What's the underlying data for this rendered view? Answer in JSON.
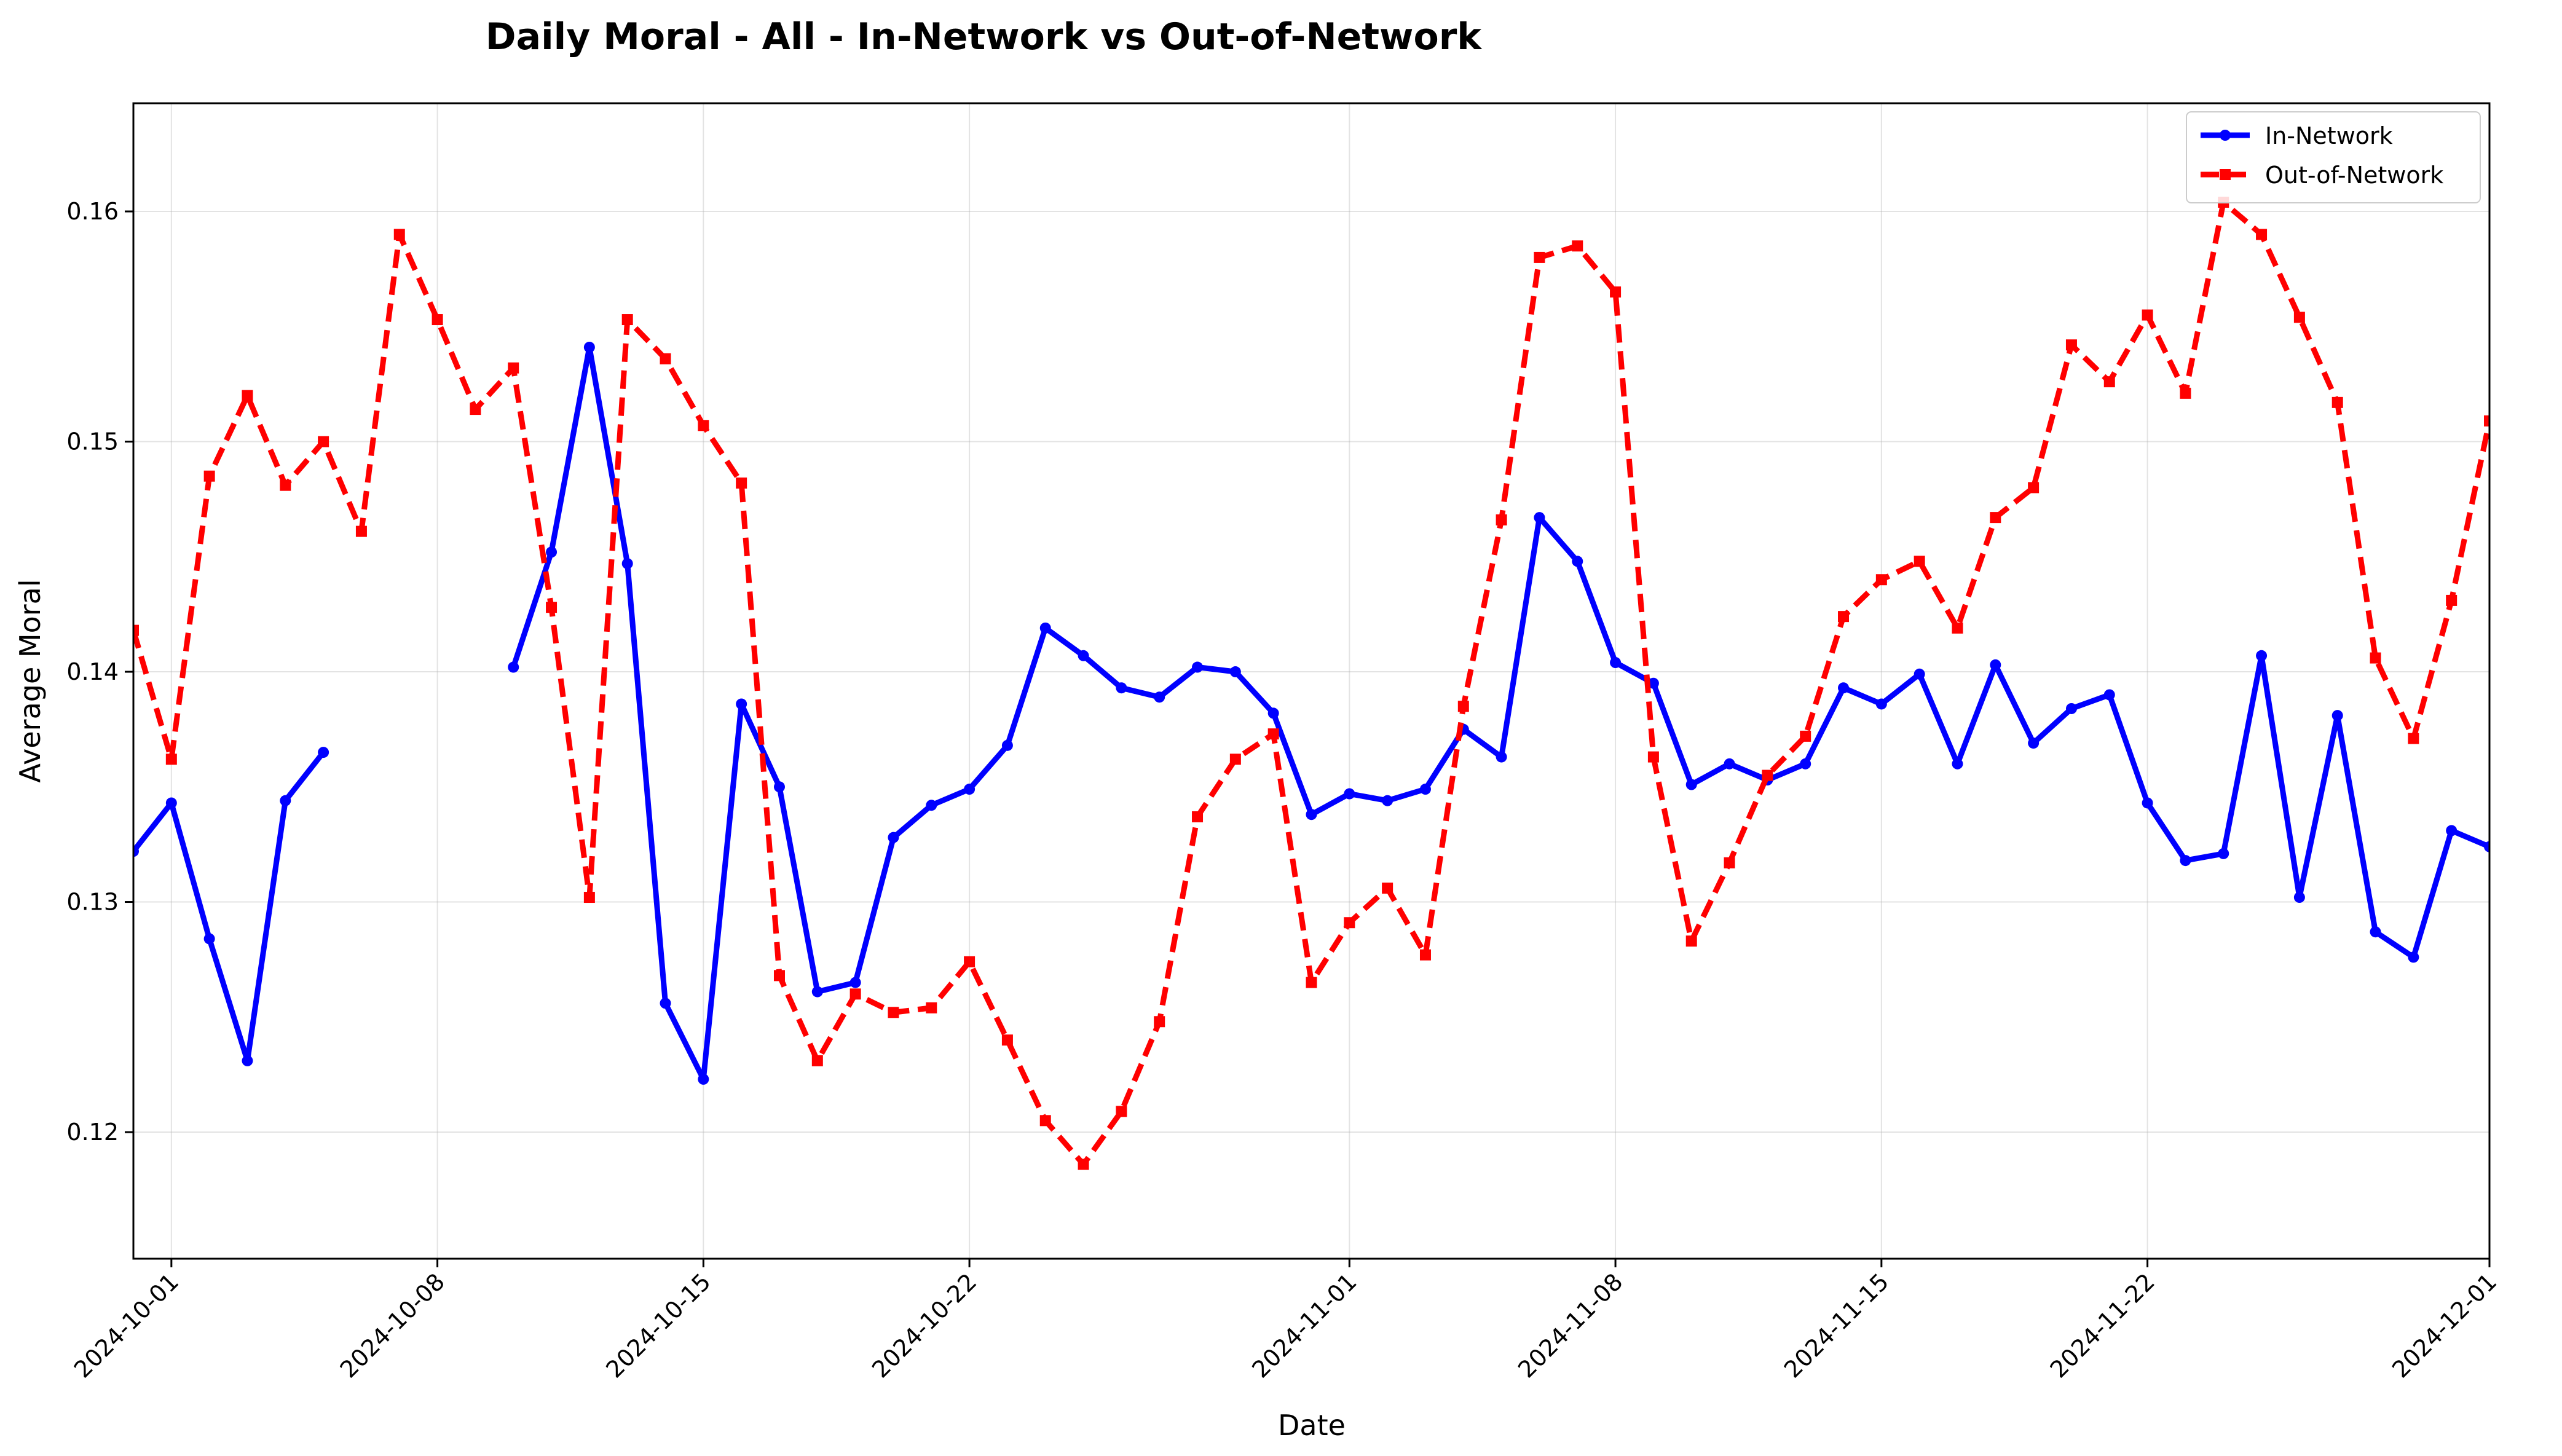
{
  "chart_data": {
    "type": "line",
    "title": "Daily Moral - All - In-Network vs Out-of-Network",
    "xlabel": "Date",
    "ylabel": "Average Moral",
    "x_start": "2024-09-30",
    "x_end": "2024-12-01",
    "xlim": [
      "2024-09-30",
      "2024-12-01"
    ],
    "ylim": [
      0.1145,
      0.1647
    ],
    "yticks": [
      0.12,
      0.13,
      0.14,
      0.15,
      0.16
    ],
    "ytick_labels": [
      "0.12",
      "0.13",
      "0.14",
      "0.15",
      "0.16"
    ],
    "xticks": [
      "2024-10-01",
      "2024-10-08",
      "2024-10-15",
      "2024-10-22",
      "2024-11-01",
      "2024-11-08",
      "2024-11-15",
      "2024-11-22",
      "2024-12-01"
    ],
    "grid": true,
    "legend_position": "top-right",
    "series": [
      {
        "name": "In-Network",
        "color": "#0000ff",
        "style": "solid",
        "marker": "circle",
        "values": [
          0.1322,
          0.1343,
          0.1284,
          0.1231,
          0.1344,
          0.1365,
          null,
          null,
          null,
          null,
          0.1402,
          0.1452,
          0.1541,
          0.1447,
          0.1256,
          0.1223,
          0.1386,
          0.135,
          0.1261,
          0.1265,
          0.1328,
          0.1342,
          0.1349,
          0.1368,
          0.1419,
          0.1407,
          0.1393,
          0.1389,
          0.1402,
          0.14,
          0.1382,
          0.1338,
          0.1347,
          0.1344,
          0.1349,
          0.1375,
          0.1363,
          0.1467,
          0.1448,
          0.1404,
          0.1395,
          0.1351,
          0.136,
          0.1353,
          0.136,
          0.1393,
          0.1386,
          0.1399,
          0.136,
          0.1403,
          0.1369,
          0.1384,
          0.139,
          0.1343,
          0.1318,
          0.1321,
          0.1407,
          0.1302,
          0.1381,
          0.1287,
          0.1276,
          0.1331,
          0.1324
        ]
      },
      {
        "name": "Out-of-Network",
        "color": "#ff0000",
        "style": "dashed",
        "marker": "square",
        "values": [
          0.1418,
          0.1362,
          0.1485,
          0.152,
          0.1481,
          0.15,
          0.1461,
          0.159,
          0.1553,
          0.1514,
          0.1532,
          0.1428,
          0.1302,
          0.1553,
          0.1536,
          0.1507,
          0.1482,
          0.1268,
          0.1231,
          0.126,
          0.1252,
          0.1254,
          0.1274,
          0.124,
          0.1205,
          0.1186,
          0.1209,
          0.1248,
          0.1337,
          0.1362,
          0.1373,
          0.1265,
          0.1291,
          0.1306,
          0.1277,
          0.1385,
          0.1466,
          0.158,
          0.1585,
          0.1565,
          0.1363,
          0.1283,
          0.1317,
          0.1355,
          0.1372,
          0.1424,
          0.144,
          0.1448,
          0.1419,
          0.1467,
          0.148,
          0.1542,
          0.1526,
          0.1555,
          0.1521,
          0.1604,
          0.159,
          0.1554,
          0.1517,
          0.1406,
          0.1371,
          0.1431,
          0.1509
        ]
      }
    ]
  }
}
